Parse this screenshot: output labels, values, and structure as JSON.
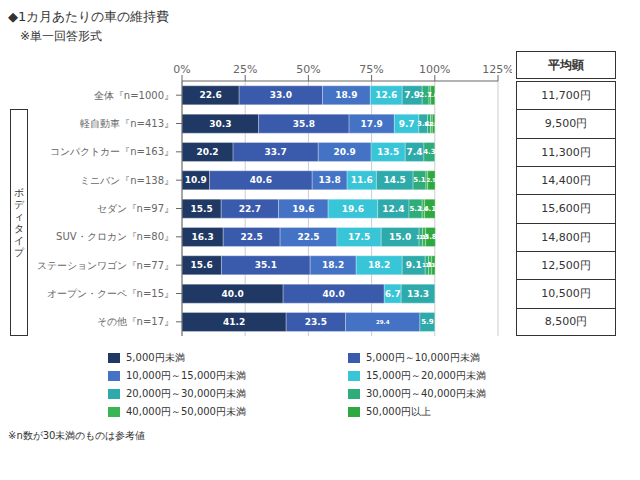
{
  "chart_data": {
    "type": "bar",
    "orientation": "horizontal",
    "stacked": true,
    "data_labels": true,
    "grid": true,
    "legend": "bottom",
    "title": "◆1カ月あたりの車の維持費",
    "subtitle": "　※単一回答形式",
    "categories": [
      "全体『n=1000』",
      "軽自動車『n=413』",
      "コンパクトカー『n=163』",
      "ミニバン『n=138』",
      "セダン『n=97』",
      "SUV・クロカン『n=80』",
      "ステーションワゴン『n=77』",
      "オープン・クーペ『n=15』",
      "その他『n=17』"
    ],
    "series": [
      {
        "name": "5,000円未満",
        "color": "#1f3864",
        "values": [
          22.6,
          30.3,
          20.2,
          10.9,
          15.5,
          16.3,
          15.6,
          40.0,
          41.2
        ],
        "value_labels": [
          "22.6",
          "30.3",
          "20.2",
          "10.9",
          "15.5",
          "16.3",
          "15.6",
          "40.0",
          "41.2"
        ]
      },
      {
        "name": "5,000円～10,000円未満",
        "color": "#3a5aab",
        "values": [
          33.0,
          35.8,
          33.7,
          40.6,
          22.7,
          22.5,
          35.1,
          40.0,
          23.5
        ],
        "value_labels": [
          "33.0",
          "35.8",
          "33.7",
          "40.6",
          "22.7",
          "22.5",
          "35.1",
          "40.0",
          "23.5"
        ]
      },
      {
        "name": "10,000円～15,000円未満",
        "color": "#4472c4",
        "values": [
          18.9,
          17.9,
          20.9,
          13.8,
          19.6,
          22.5,
          18.2,
          0.0,
          29.4
        ],
        "value_labels": [
          "18.9",
          "17.9",
          "20.9",
          "13.8",
          "19.6",
          "22.5",
          "18.2",
          null,
          "29.4"
        ]
      },
      {
        "name": "15,000円～20,000円未満",
        "color": "#38c5d8",
        "values": [
          12.6,
          9.7,
          13.5,
          11.6,
          19.6,
          17.5,
          18.2,
          6.7,
          0.0
        ],
        "value_labels": [
          "12.6",
          "9.7",
          "13.5",
          "11.6",
          "19.6",
          "17.5",
          "18.2",
          "6.7",
          null
        ]
      },
      {
        "name": "20,000円～30,000円未満",
        "color": "#2eaaaa",
        "values": [
          7.9,
          3.4,
          7.4,
          14.5,
          12.4,
          15.0,
          9.1,
          13.3,
          5.9
        ],
        "value_labels": [
          "7.9",
          "3.4",
          "7.4",
          "14.5",
          "12.4",
          "15.0",
          "9.1",
          "13.3",
          "5.9"
        ]
      },
      {
        "name": "30,000円～40,000円未満",
        "color": "#2ead7a",
        "values": [
          2.7,
          1.2,
          4.3,
          5.1,
          5.2,
          1.3,
          1.3,
          0.0,
          0.0
        ],
        "value_labels": [
          "2.7",
          "1.2",
          "4.3",
          "5.1",
          "5.2",
          "1.3",
          "1.3",
          null,
          null
        ]
      },
      {
        "name": "40,000円～50,000円未満",
        "color": "#3ab554",
        "values": [
          0.7,
          0.7,
          0.0,
          0.7,
          1.0,
          1.3,
          1.3,
          0.0,
          0.0
        ],
        "value_labels": [
          null,
          null,
          null,
          null,
          "1.0",
          "1.3",
          "1.3",
          null,
          null
        ]
      },
      {
        "name": "50,000円以上",
        "color": "#2ea840",
        "values": [
          1.6,
          1.0,
          0.0,
          2.9,
          4.1,
          3.8,
          1.3,
          0.0,
          0.0
        ],
        "value_labels": [
          "1.6",
          "1.0",
          null,
          "2.9",
          "4.1",
          "3.8",
          "1.3",
          null,
          null
        ]
      }
    ],
    "xlim": [
      0,
      125
    ],
    "xticks": [
      {
        "value": 0,
        "label": "0%"
      },
      {
        "value": 25,
        "label": "25%"
      },
      {
        "value": 50,
        "label": "50%"
      },
      {
        "value": 75,
        "label": "75%"
      },
      {
        "value": 100,
        "label": "100%"
      },
      {
        "value": 125,
        "label": "125%"
      }
    ],
    "annotations": {
      "group_label": "ボ\nデ\nィ\nタ\nイ\nプ",
      "column_header": "平均顕",
      "column": [
        "11,700円",
        "9,500円",
        "11,300円",
        "14,400円",
        "15,600円",
        "14,800円",
        "12,500円",
        "10,500円",
        "8,500円"
      ],
      "note": "※n数が30未満のものは参考値"
    }
  }
}
